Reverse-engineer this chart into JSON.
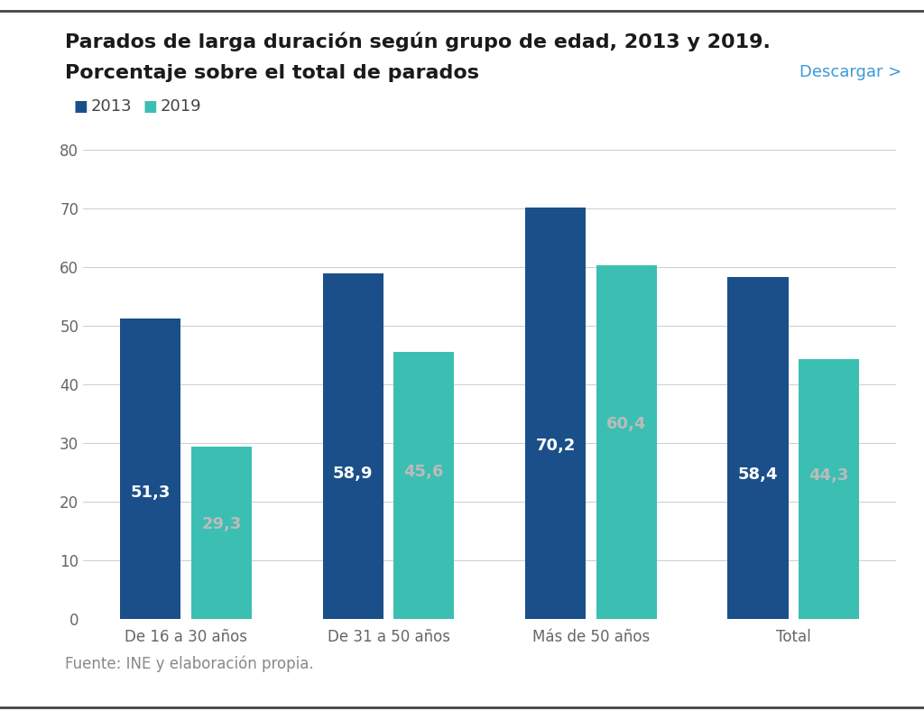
{
  "title_line1": "Parados de larga duración según grupo de edad, 2013 y 2019.",
  "title_line2": "Porcentaje sobre el total de parados",
  "descargar_text": "Descargar >",
  "categories": [
    "De 16 a 30 años",
    "De 31 a 50 años",
    "Más de 50 años",
    "Total"
  ],
  "values_2013": [
    51.3,
    58.9,
    70.2,
    58.4
  ],
  "values_2019": [
    29.3,
    45.6,
    60.4,
    44.3
  ],
  "color_2013": "#1a4f8a",
  "color_2019": "#3bbfb2",
  "label_2013": "2013",
  "label_2019": "2019",
  "ylim": [
    0,
    85
  ],
  "yticks": [
    0,
    10,
    20,
    30,
    40,
    50,
    60,
    70,
    80
  ],
  "bar_label_color_2013": "#ffffff",
  "bar_label_color_2019": "#bbbbbb",
  "source_text": "Fuente: INE y elaboración propia.",
  "background_color": "#ffffff",
  "grid_color": "#cccccc",
  "descargar_color": "#3a9ad9",
  "title_fontsize": 16,
  "legend_fontsize": 13,
  "bar_label_fontsize": 13,
  "tick_fontsize": 12,
  "source_fontsize": 12,
  "xtick_fontsize": 12,
  "bar_width": 0.3,
  "bar_gap": 0.05
}
